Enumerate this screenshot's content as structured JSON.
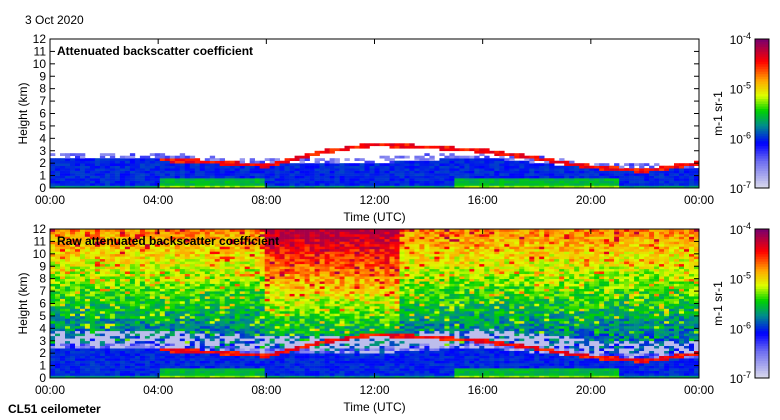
{
  "date": "3 Oct 2020",
  "instrument": "CL51 ceilometer",
  "chart_data": [
    {
      "type": "heatmap",
      "title": "Attenuated backscatter coefficient",
      "xlabel": "Time (UTC)",
      "ylabel": "Height (km)",
      "xlim": [
        0,
        24
      ],
      "ylim": [
        0,
        12
      ],
      "xticks": [
        "00:00",
        "04:00",
        "08:00",
        "12:00",
        "16:00",
        "20:00",
        "00:00"
      ],
      "yticks": [
        "0",
        "1",
        "2",
        "3",
        "4",
        "5",
        "6",
        "7",
        "8",
        "9",
        "10",
        "11",
        "12"
      ],
      "colorbar": {
        "label": "m-1 sr-1",
        "ticks": [
          "10-7",
          "10-6",
          "10-5",
          "10-4"
        ],
        "range": [
          1e-07,
          0.0001
        ],
        "scale": "log"
      },
      "cloud_base_km": {
        "hours": [
          0,
          2,
          4,
          6,
          8,
          10,
          12,
          14,
          16,
          18,
          20,
          22,
          24
        ],
        "values": [
          null,
          null,
          2.3,
          2.1,
          1.8,
          2.9,
          3.5,
          3.3,
          3.0,
          2.4,
          1.7,
          1.4,
          2.0
        ]
      },
      "boundary_layer_top_km": {
        "hours": [
          0,
          4,
          8,
          12,
          16,
          20,
          24
        ],
        "values": [
          2.4,
          2.3,
          1.9,
          2.0,
          2.5,
          1.6,
          1.5
        ]
      },
      "noise": false
    },
    {
      "type": "heatmap",
      "title": "Raw attenuated backscatter coefficient",
      "xlabel": "Time (UTC)",
      "ylabel": "Height (km)",
      "xlim": [
        0,
        24
      ],
      "ylim": [
        0,
        12
      ],
      "xticks": [
        "00:00",
        "04:00",
        "08:00",
        "12:00",
        "16:00",
        "20:00",
        "00:00"
      ],
      "yticks": [
        "0",
        "1",
        "2",
        "3",
        "4",
        "5",
        "6",
        "7",
        "8",
        "9",
        "10",
        "11",
        "12"
      ],
      "colorbar": {
        "label": "m-1 sr-1",
        "ticks": [
          "10-7",
          "10-6",
          "10-5",
          "10-4"
        ],
        "range": [
          1e-07,
          0.0001
        ],
        "scale": "log"
      },
      "cloud_base_km": {
        "hours": [
          0,
          2,
          4,
          6,
          8,
          10,
          12,
          14,
          16,
          18,
          20,
          22,
          24
        ],
        "values": [
          null,
          null,
          2.3,
          2.1,
          1.8,
          2.9,
          3.5,
          3.3,
          3.0,
          2.4,
          1.7,
          1.4,
          2.0
        ]
      },
      "boundary_layer_top_km": {
        "hours": [
          0,
          4,
          8,
          12,
          16,
          20,
          24
        ],
        "values": [
          2.4,
          2.3,
          1.9,
          2.0,
          2.5,
          1.6,
          1.5
        ]
      },
      "noise": true
    }
  ]
}
